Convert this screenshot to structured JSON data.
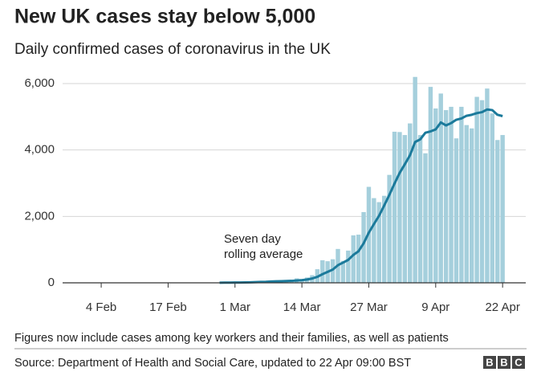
{
  "chart_data": {
    "type": "bar",
    "title": "New UK cases stay below 5,000",
    "subtitle": "Daily confirmed cases of coronavirus in the UK",
    "categories": [
      null,
      null,
      null,
      null,
      null,
      null,
      null,
      "4 Feb",
      null,
      null,
      null,
      null,
      null,
      null,
      null,
      null,
      null,
      null,
      null,
      null,
      "17 Feb",
      null,
      null,
      null,
      null,
      null,
      null,
      null,
      null,
      null,
      null,
      null,
      null,
      "1 Mar",
      null,
      null,
      null,
      null,
      null,
      null,
      null,
      null,
      null,
      null,
      null,
      null,
      "14 Mar",
      null,
      null,
      null,
      null,
      null,
      null,
      null,
      null,
      null,
      null,
      null,
      null,
      "27 Mar",
      null,
      null,
      null,
      null,
      null,
      null,
      null,
      null,
      null,
      null,
      null,
      null,
      "9 Apr",
      null,
      null,
      null,
      null,
      null,
      null,
      null,
      null,
      null,
      null,
      null,
      null,
      "22 Apr",
      null,
      null,
      null,
      null
    ],
    "series": [
      {
        "type": "bar",
        "color": "#a5cfdc",
        "values": [
          0,
          0,
          0,
          0,
          0,
          0,
          0,
          0,
          0,
          0,
          0,
          0,
          0,
          0,
          0,
          0,
          0,
          0,
          0,
          0,
          0,
          0,
          0,
          0,
          0,
          0,
          0,
          0,
          0,
          0,
          3,
          12,
          12,
          13,
          4,
          11,
          34,
          30,
          48,
          43,
          67,
          48,
          61,
          74,
          83,
          134,
          117,
          160,
          230,
          410,
          680,
          650,
          710,
          1020,
          660,
          970,
          1430,
          1450,
          2130,
          2890,
          2550,
          2430,
          2620,
          3250,
          4550,
          4540,
          4450,
          4800,
          6200,
          4450,
          3900,
          5900,
          5250,
          5700,
          5200,
          5300,
          4350,
          5300,
          4750,
          4650,
          5600,
          5500,
          5850,
          5100,
          4300,
          4450,
          null,
          null,
          null,
          null
        ]
      },
      {
        "type": "line",
        "name": [
          "Seven day",
          "rolling average"
        ],
        "color": "#1b7a9b",
        "values": [
          null,
          null,
          null,
          null,
          null,
          null,
          null,
          null,
          null,
          null,
          null,
          null,
          null,
          null,
          null,
          null,
          null,
          null,
          null,
          null,
          null,
          null,
          null,
          null,
          null,
          null,
          null,
          null,
          null,
          null,
          2,
          5,
          7,
          9,
          10,
          12,
          16,
          20,
          26,
          31,
          40,
          44,
          47,
          53,
          59,
          70,
          80,
          100,
          130,
          180,
          260,
          330,
          400,
          530,
          610,
          690,
          840,
          950,
          1190,
          1510,
          1770,
          2020,
          2330,
          2650,
          2990,
          3310,
          3570,
          3840,
          4240,
          4320,
          4520,
          4560,
          4620,
          4830,
          4740,
          4810,
          4910,
          4950,
          5030,
          5060,
          5110,
          5140,
          5220,
          5200,
          5060,
          5020,
          null,
          null,
          null,
          null
        ]
      }
    ],
    "ylim": [
      0,
      6000
    ],
    "yticks": [
      0,
      {
        "value": 2000,
        "label": "2,000"
      },
      {
        "value": 4000,
        "label": "4,000"
      },
      {
        "value": 6000,
        "label": "6,000"
      }
    ],
    "grid": true,
    "footnote": "Figures now include cases among key workers and their families, as well as patients",
    "source": "Source: Department of Health and Social Care, updated to 22 Apr 09:00 BST",
    "logo": "BBC"
  }
}
